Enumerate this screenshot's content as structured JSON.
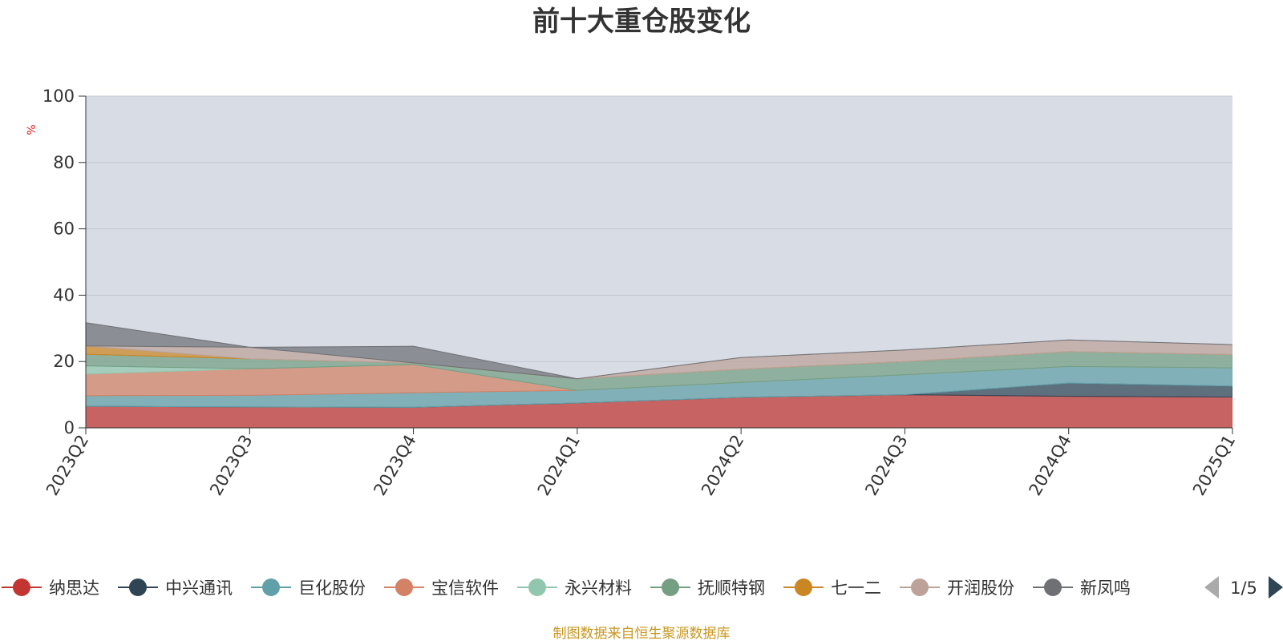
{
  "chart_data": {
    "type": "area",
    "stacked": true,
    "title": "前十大重仓股变化",
    "ylabel": "%",
    "ylim": [
      0,
      100
    ],
    "yticks": [
      0,
      20,
      40,
      60,
      80,
      100
    ],
    "categories": [
      "2023Q2",
      "2023Q3",
      "2023Q4",
      "2024Q1",
      "2024Q2",
      "2024Q3",
      "2024Q4",
      "2025Q1"
    ],
    "grid": true,
    "legend_position": "bottom",
    "legend_page": "1/5",
    "series": [
      {
        "name": "纳思达",
        "color": "#c23531",
        "values": [
          6.5,
          6.3,
          6.2,
          7.5,
          9.2,
          10.0,
          9.5,
          9.3
        ]
      },
      {
        "name": "中兴通讯",
        "color": "#2f4554",
        "values": [
          0,
          0,
          0,
          0,
          0,
          0,
          4.0,
          3.3
        ]
      },
      {
        "name": "巨化股份",
        "color": "#61a0a8",
        "values": [
          3.2,
          3.5,
          4.4,
          3.8,
          4.5,
          6.0,
          5.0,
          5.5
        ]
      },
      {
        "name": "宝信软件",
        "color": "#d48265",
        "values": [
          6.5,
          8.0,
          8.5,
          0,
          0,
          0,
          0,
          0
        ]
      },
      {
        "name": "永兴材料",
        "color": "#91c7ae",
        "values": [
          2.5,
          0,
          0,
          0,
          0,
          0,
          0,
          0
        ]
      },
      {
        "name": "抚顺特钢",
        "color": "#749f83",
        "values": [
          3.5,
          3.0,
          0.5,
          3.5,
          4.0,
          4.0,
          4.5,
          4.0
        ]
      },
      {
        "name": "七一二",
        "color": "#ca8622",
        "values": [
          2.5,
          0,
          0,
          0,
          0,
          0,
          0,
          0
        ]
      },
      {
        "name": "开润股份",
        "color": "#bda29a",
        "values": [
          0,
          3.5,
          0,
          0,
          3.5,
          3.5,
          3.5,
          3.0
        ]
      },
      {
        "name": "新凤鸣",
        "color": "#6e7074",
        "values": [
          7.0,
          0,
          5.0,
          0,
          0,
          0,
          0,
          0
        ]
      }
    ]
  },
  "legend_items": [
    {
      "name": "纳思达",
      "color": "#c23531"
    },
    {
      "name": "中兴通讯",
      "color": "#2f4554"
    },
    {
      "name": "巨化股份",
      "color": "#61a0a8"
    },
    {
      "name": "宝信软件",
      "color": "#d48265"
    },
    {
      "name": "永兴材料",
      "color": "#91c7ae"
    },
    {
      "name": "抚顺特钢",
      "color": "#749f83"
    },
    {
      "name": "七一二",
      "color": "#ca8622"
    },
    {
      "name": "开润股份",
      "color": "#bda29a"
    },
    {
      "name": "新凤鸣",
      "color": "#6e7074"
    }
  ],
  "legend_page": "1/5",
  "source": "制图数据来自恒生聚源数据库"
}
